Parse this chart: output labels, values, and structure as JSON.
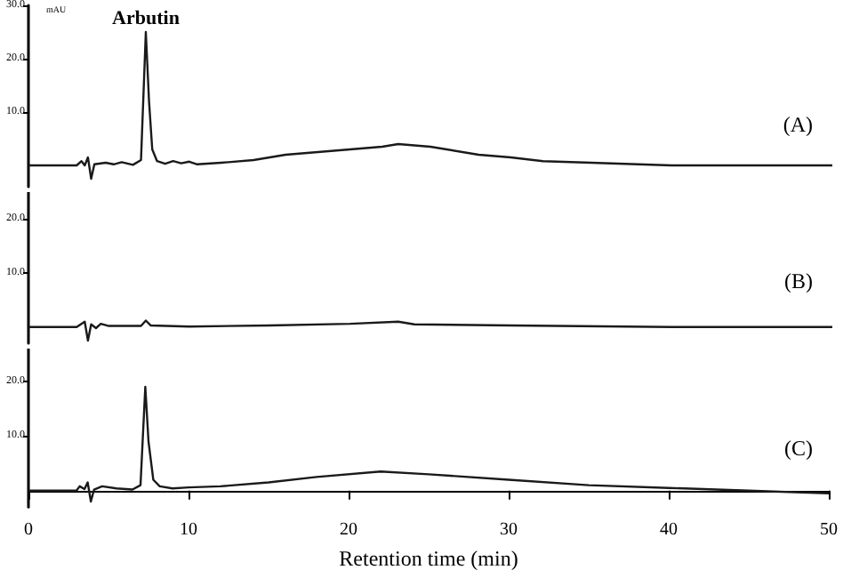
{
  "chart_data": [
    {
      "type": "line",
      "title": "(A)",
      "ylabel": "mAU",
      "xlim": [
        0,
        50
      ],
      "xticks": [
        0,
        10,
        20,
        30,
        40,
        50
      ],
      "ylim": [
        -4,
        30
      ],
      "yticks": [
        {
          "value": 10,
          "label": "10.0"
        },
        {
          "value": 20,
          "label": "20.0"
        },
        {
          "value": 30,
          "label": "30.0"
        }
      ],
      "tick_labels": "y",
      "marker": "none",
      "x": [
        0,
        3,
        3.3,
        3.5,
        3.7,
        3.9,
        4.1,
        4.8,
        5.3,
        5.8,
        6.5,
        7.0,
        7.3,
        7.5,
        7.7,
        8.0,
        8.5,
        9,
        9.5,
        10,
        10.5,
        12,
        14,
        15,
        16,
        18,
        20,
        22,
        23,
        25,
        28,
        30,
        32,
        35,
        40,
        45,
        50
      ],
      "series": [
        {
          "color": "#1a1a1a",
          "values": [
            0,
            0,
            0.8,
            0,
            1.5,
            -2.5,
            0.2,
            0.5,
            0.2,
            0.6,
            0.1,
            1,
            25,
            12,
            3,
            0.8,
            0.3,
            0.8,
            0.4,
            0.7,
            0.2,
            0.5,
            1,
            1.5,
            2,
            2.5,
            3,
            3.5,
            4,
            3.5,
            2,
            1.5,
            0.8,
            0.5,
            0,
            0,
            0
          ]
        }
      ],
      "annotations": [
        {
          "text": "Arbutin",
          "x": 7.3,
          "y": 25
        }
      ]
    },
    {
      "type": "line",
      "title": "(B)",
      "xlim": [
        0,
        50
      ],
      "xticks": [
        0,
        10,
        20,
        30,
        40,
        50
      ],
      "ylim": [
        -3,
        25
      ],
      "yticks": [
        {
          "value": 10,
          "label": "10.0"
        },
        {
          "value": 20,
          "label": "20.0"
        }
      ],
      "tick_labels": "y",
      "marker": "none",
      "x": [
        0,
        3,
        3.5,
        3.7,
        3.9,
        4.2,
        4.5,
        5,
        7,
        7.3,
        7.6,
        10,
        15,
        20,
        23,
        24,
        30,
        40,
        50
      ],
      "series": [
        {
          "color": "#1a1a1a",
          "values": [
            0,
            0,
            1,
            -2.5,
            0.5,
            -0.2,
            0.6,
            0.2,
            0.2,
            1.2,
            0.3,
            0.1,
            0.3,
            0.6,
            1,
            0.5,
            0.3,
            0,
            0
          ]
        }
      ]
    },
    {
      "type": "line",
      "title": "(C)",
      "xlabel": "Retention time (min)",
      "xlim": [
        0,
        50
      ],
      "xticks": [
        0,
        10,
        20,
        30,
        40,
        50
      ],
      "ylim": [
        -3,
        26
      ],
      "yticks": [
        {
          "value": 10,
          "label": "10.0"
        },
        {
          "value": 20,
          "label": "20.0"
        }
      ],
      "marker": "none",
      "x": [
        0,
        3,
        3.2,
        3.5,
        3.7,
        3.9,
        4.1,
        4.6,
        5.5,
        6.5,
        7.0,
        7.3,
        7.5,
        7.8,
        8.2,
        9,
        10,
        12,
        15,
        18,
        22,
        25,
        30,
        35,
        40,
        45,
        50
      ],
      "series": [
        {
          "color": "#1a1a1a",
          "values": [
            0,
            0,
            0.8,
            0.3,
            1.5,
            -2,
            0.2,
            0.8,
            0.4,
            0.2,
            1,
            19,
            9,
            2,
            0.8,
            0.4,
            0.6,
            0.8,
            1.5,
            2.5,
            3.5,
            3,
            2,
            1,
            0.5,
            0,
            -0.5
          ]
        }
      ]
    }
  ]
}
